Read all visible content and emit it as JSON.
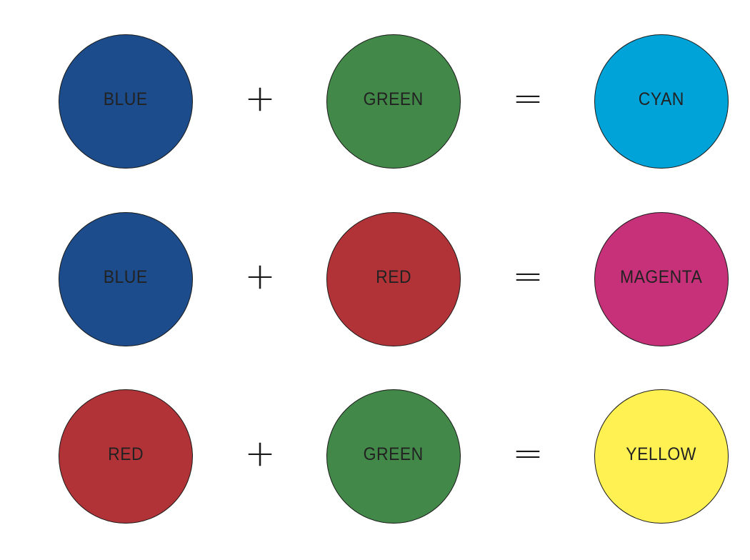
{
  "rows": [
    {
      "a": {
        "label": "BLUE",
        "color": "#1c4c8c"
      },
      "op1": "+",
      "b": {
        "label": "GREEN",
        "color": "#428848"
      },
      "op2": "=",
      "result": {
        "label": "CYAN",
        "color": "#00a3d7"
      }
    },
    {
      "a": {
        "label": "BLUE",
        "color": "#1c4c8c"
      },
      "op1": "+",
      "b": {
        "label": "RED",
        "color": "#b23337"
      },
      "op2": "=",
      "result": {
        "label": "MAGENTA",
        "color": "#c6317a"
      }
    },
    {
      "a": {
        "label": "RED",
        "color": "#b23337"
      },
      "op1": "+",
      "b": {
        "label": "GREEN",
        "color": "#428848"
      },
      "op2": "=",
      "result": {
        "label": "YELLOW",
        "color": "#fff152"
      }
    }
  ]
}
